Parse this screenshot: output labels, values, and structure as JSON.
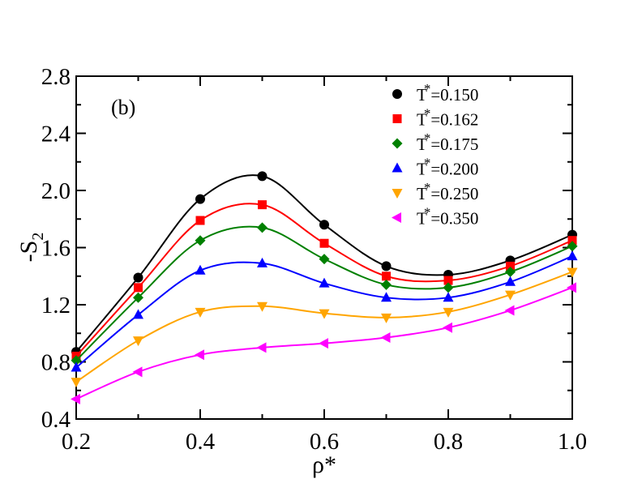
{
  "chart_data": {
    "type": "line",
    "title": "",
    "annotation": "(b)",
    "xlabel": "ρ*",
    "ylabel": {
      "base": "-S",
      "sub": "2"
    },
    "xlim": [
      0.2,
      1.0
    ],
    "ylim": [
      0.4,
      2.8
    ],
    "xticks": [
      0.2,
      0.4,
      0.6,
      0.8,
      1.0
    ],
    "xtick_labels": [
      "0.2",
      "0.4",
      "0.6",
      "0.8",
      "1.0"
    ],
    "yticks": [
      0.4,
      0.8,
      1.2,
      1.6,
      2.0,
      2.4,
      2.8
    ],
    "ytick_labels": [
      "0.4",
      "0.8",
      "1.2",
      "1.6",
      "2.0",
      "2.4",
      "2.8"
    ],
    "grid": false,
    "legend_position": "top-right",
    "x": [
      0.2,
      0.3,
      0.4,
      0.5,
      0.6,
      0.7,
      0.8,
      0.9,
      1.0
    ],
    "series": [
      {
        "name": "T*=0.150",
        "label_base": "T",
        "label_sup": "*",
        "label_rest": "=0.150",
        "color": "#000000",
        "marker": "circle",
        "values": [
          0.87,
          1.39,
          1.94,
          2.1,
          1.76,
          1.47,
          1.41,
          1.51,
          1.69
        ]
      },
      {
        "name": "T*=0.162",
        "label_base": "T",
        "label_sup": "*",
        "label_rest": "=0.162",
        "color": "#ff0000",
        "marker": "square",
        "values": [
          0.84,
          1.32,
          1.79,
          1.9,
          1.63,
          1.4,
          1.37,
          1.47,
          1.65
        ]
      },
      {
        "name": "T*=0.175",
        "label_base": "T",
        "label_sup": "*",
        "label_rest": "=0.175",
        "color": "#008000",
        "marker": "diamond",
        "values": [
          0.81,
          1.25,
          1.65,
          1.74,
          1.52,
          1.34,
          1.32,
          1.43,
          1.61
        ]
      },
      {
        "name": "T*=0.200",
        "label_base": "T",
        "label_sup": "*",
        "label_rest": "=0.200",
        "color": "#0000ff",
        "marker": "triangle-up",
        "values": [
          0.76,
          1.13,
          1.44,
          1.49,
          1.35,
          1.25,
          1.25,
          1.36,
          1.54
        ]
      },
      {
        "name": "T*=0.250",
        "label_base": "T",
        "label_sup": "*",
        "label_rest": "=0.250",
        "color": "#ffa500",
        "marker": "triangle-down",
        "values": [
          0.66,
          0.95,
          1.15,
          1.19,
          1.14,
          1.11,
          1.15,
          1.27,
          1.43
        ]
      },
      {
        "name": "T*=0.350",
        "label_base": "T",
        "label_sup": "*",
        "label_rest": "=0.350",
        "color": "#ff00ff",
        "marker": "triangle-left",
        "values": [
          0.54,
          0.73,
          0.85,
          0.9,
          0.93,
          0.97,
          1.04,
          1.16,
          1.32
        ]
      }
    ]
  }
}
